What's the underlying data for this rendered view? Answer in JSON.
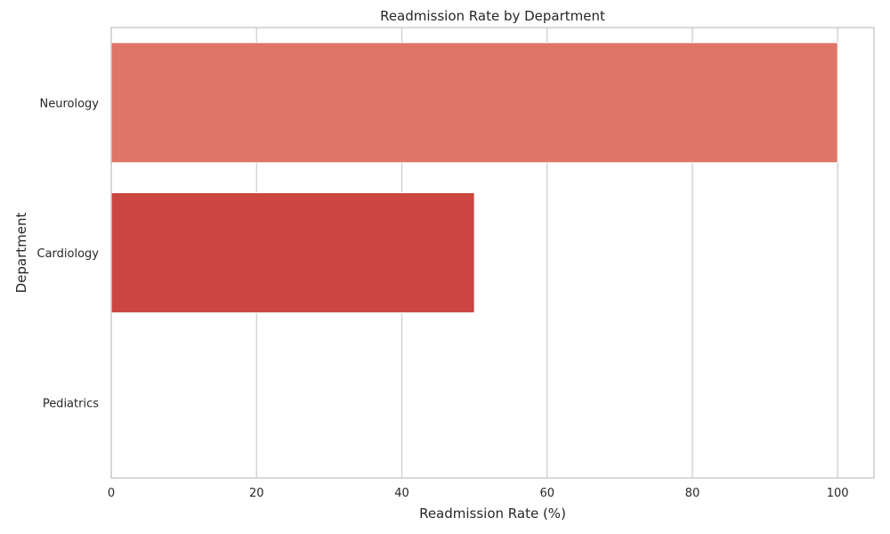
{
  "chart_data": {
    "type": "bar",
    "orientation": "horizontal",
    "title": "Readmission Rate by Department",
    "xlabel": "Readmission Rate (%)",
    "ylabel": "Department",
    "categories": [
      "Neurology",
      "Cardiology",
      "Pediatrics"
    ],
    "values": [
      100,
      50,
      0
    ],
    "colors": [
      "#de7566",
      "#cb4640",
      "#ffffff"
    ],
    "xlim": [
      0,
      105
    ],
    "xticks": [
      0,
      20,
      40,
      60,
      80,
      100
    ],
    "grid": true,
    "legend": "none"
  }
}
